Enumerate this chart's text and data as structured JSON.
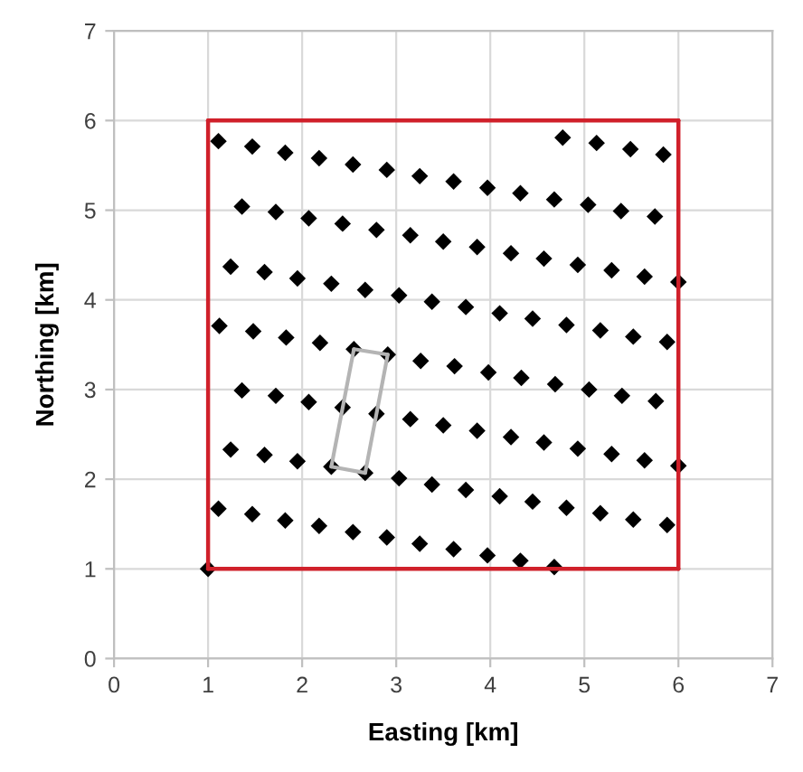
{
  "chart_data": {
    "type": "scatter",
    "xlabel": "Easting [km]",
    "ylabel": "Northing [km]",
    "xlim": [
      0,
      7
    ],
    "ylim": [
      0,
      7
    ],
    "xticks": [
      0,
      1,
      2,
      3,
      4,
      5,
      6,
      7
    ],
    "yticks": [
      0,
      1,
      2,
      3,
      4,
      5,
      6,
      7
    ],
    "grid": true,
    "legend": false,
    "series": [
      {
        "type": "line",
        "color": "#d0202a",
        "marker": "none",
        "x": [
          1,
          6
        ],
        "values": [
          1,
          1
        ]
      },
      {
        "type": "line",
        "color": "#d0202a",
        "marker": "none",
        "x": [
          6,
          6
        ],
        "values": [
          1,
          6
        ]
      },
      {
        "type": "line",
        "color": "#d0202a",
        "marker": "none",
        "x": [
          1,
          6
        ],
        "values": [
          6,
          6
        ]
      },
      {
        "type": "line",
        "color": "#d0202a",
        "marker": "none",
        "x": [
          1,
          1
        ],
        "values": [
          1,
          6
        ]
      },
      {
        "type": "line",
        "color": "#b4b4b4",
        "marker": "none",
        "x": [
          2.31,
          2.55
        ],
        "values": [
          2.14,
          3.45
        ]
      },
      {
        "type": "line",
        "color": "#b4b4b4",
        "marker": "none",
        "x": [
          2.55,
          2.91
        ],
        "values": [
          3.45,
          3.39
        ]
      },
      {
        "type": "line",
        "color": "#b4b4b4",
        "marker": "none",
        "x": [
          2.67,
          2.91
        ],
        "values": [
          2.07,
          3.39
        ]
      },
      {
        "type": "line",
        "color": "#b4b4b4",
        "marker": "none",
        "x": [
          2.31,
          2.67
        ],
        "values": [
          2.14,
          2.07
        ]
      },
      {
        "type": "scatter",
        "color": "#000000",
        "marker": "diamond",
        "x": [
          1,
          1.11,
          1.47,
          1.82,
          2.18,
          2.54,
          2.9,
          3.25,
          3.61,
          3.97,
          4.32,
          4.68,
          1.24,
          1.6,
          1.95,
          2.31,
          2.67,
          3.03,
          3.38,
          3.74,
          4.1,
          4.45,
          4.81,
          5.17,
          5.52,
          5.88,
          1.36,
          1.72,
          2.07,
          2.43,
          2.79,
          3.15,
          3.5,
          3.86,
          4.22,
          4.57,
          4.93,
          5.29,
          5.64,
          6.0,
          1.12,
          1.48,
          1.83,
          2.19,
          2.55,
          2.91,
          3.26,
          3.62,
          3.98,
          4.33,
          4.69,
          5.05,
          5.4,
          5.76,
          1.24,
          1.6,
          1.95,
          2.31,
          2.67,
          3.03,
          3.38,
          3.74,
          4.1,
          4.45,
          4.81,
          5.17,
          5.52,
          5.88,
          1.36,
          1.72,
          2.07,
          2.43,
          2.79,
          3.15,
          3.5,
          3.86,
          4.22,
          4.57,
          4.93,
          5.29,
          5.64,
          6.0,
          1.11,
          1.47,
          1.82,
          2.18,
          2.54,
          2.9,
          3.25,
          3.61,
          3.97,
          4.32,
          4.68,
          5.04,
          5.39,
          5.75,
          4.77,
          5.13,
          5.49,
          5.84
        ],
        "values": [
          1,
          1.67,
          1.61,
          1.54,
          1.48,
          1.41,
          1.35,
          1.28,
          1.22,
          1.15,
          1.09,
          1.02,
          2.33,
          2.27,
          2.2,
          2.14,
          2.07,
          2.01,
          1.94,
          1.88,
          1.81,
          1.75,
          1.68,
          1.62,
          1.55,
          1.49,
          2.99,
          2.93,
          2.86,
          2.8,
          2.73,
          2.67,
          2.6,
          2.54,
          2.47,
          2.41,
          2.34,
          2.28,
          2.21,
          2.15,
          3.71,
          3.65,
          3.58,
          3.52,
          3.45,
          3.39,
          3.32,
          3.26,
          3.19,
          3.13,
          3.06,
          3.0,
          2.93,
          2.87,
          4.37,
          4.31,
          4.24,
          4.18,
          4.11,
          4.05,
          3.98,
          3.92,
          3.85,
          3.79,
          3.72,
          3.66,
          3.59,
          3.53,
          5.04,
          4.98,
          4.91,
          4.85,
          4.78,
          4.72,
          4.65,
          4.59,
          4.52,
          4.46,
          4.39,
          4.33,
          4.26,
          4.2,
          5.77,
          5.71,
          5.64,
          5.58,
          5.51,
          5.45,
          5.38,
          5.32,
          5.25,
          5.19,
          5.12,
          5.06,
          4.99,
          4.93,
          5.81,
          5.75,
          5.68,
          5.62
        ]
      }
    ]
  }
}
